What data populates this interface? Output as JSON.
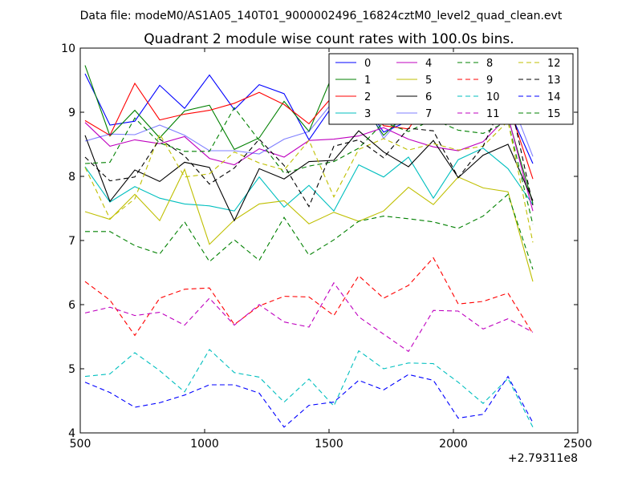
{
  "page": {
    "suptitle": "Data file: modeM0/AS1A05_140T01_9000002496_16824cztM0_level2_quad_clean.evt"
  },
  "chart_data": {
    "type": "line",
    "title": "Quadrant 2 module wise count rates with 100.0s bins.",
    "xlabel": "",
    "ylabel": "",
    "x_offset_label": "+2.79311e8",
    "xlim": [
      500,
      2500
    ],
    "ylim": [
      4,
      10
    ],
    "xticks": [
      500,
      1000,
      1500,
      2000,
      2500
    ],
    "yticks": [
      4,
      5,
      6,
      7,
      8,
      9,
      10
    ],
    "grid": false,
    "legend": {
      "position": "top-right",
      "ncol": 4
    },
    "x": [
      519.5,
      619.5,
      719.5,
      819.5,
      919.5,
      1019.5,
      1119.5,
      1219.5,
      1319.5,
      1419.5,
      1519.5,
      1619.5,
      1719.5,
      1819.5,
      1919.5,
      2019.5,
      2119.5,
      2219.5,
      2319.5
    ],
    "series": [
      {
        "name": "0",
        "color": "#0000ff",
        "dash": "solid",
        "values": [
          9.6,
          8.8,
          8.86,
          9.42,
          9.06,
          9.58,
          9.04,
          9.43,
          9.29,
          8.57,
          9.13,
          9.26,
          8.69,
          8.86,
          9.62,
          9.24,
          9.17,
          9.07,
          8.2
        ]
      },
      {
        "name": "1",
        "color": "#008000",
        "dash": "solid",
        "values": [
          9.73,
          8.63,
          9.03,
          8.6,
          9.02,
          9.11,
          8.42,
          8.6,
          9.17,
          8.7,
          9.63,
          9.21,
          8.64,
          9.01,
          9.22,
          9.06,
          9.07,
          8.92,
          7.58
        ]
      },
      {
        "name": "2",
        "color": "#ff0000",
        "dash": "solid",
        "values": [
          8.87,
          8.64,
          9.45,
          8.88,
          8.97,
          9.03,
          9.14,
          9.31,
          9.12,
          8.82,
          9.27,
          9.25,
          8.79,
          8.74,
          9.3,
          9.08,
          9.03,
          9.14,
          7.96
        ]
      },
      {
        "name": "3",
        "color": "#00bfbf",
        "dash": "solid",
        "values": [
          8.15,
          7.6,
          7.84,
          7.66,
          7.57,
          7.54,
          7.46,
          7.99,
          7.52,
          7.86,
          7.46,
          8.18,
          7.99,
          8.3,
          7.66,
          8.26,
          8.44,
          8.12,
          7.56
        ]
      },
      {
        "name": "4",
        "color": "#bf00bf",
        "dash": "solid",
        "values": [
          8.84,
          8.47,
          8.57,
          8.51,
          8.62,
          8.28,
          8.18,
          8.43,
          8.3,
          8.56,
          8.58,
          8.63,
          8.76,
          8.58,
          8.46,
          8.4,
          8.54,
          8.94,
          7.46
        ]
      },
      {
        "name": "5",
        "color": "#bfbf00",
        "dash": "solid",
        "values": [
          7.45,
          7.33,
          7.72,
          7.31,
          8.11,
          6.94,
          7.32,
          7.57,
          7.62,
          7.26,
          7.44,
          7.3,
          7.46,
          7.83,
          7.56,
          7.99,
          7.82,
          7.76,
          6.36
        ]
      },
      {
        "name": "6",
        "color": "#000000",
        "dash": "solid",
        "values": [
          8.64,
          7.61,
          8.1,
          7.92,
          8.22,
          8.14,
          7.31,
          8.12,
          7.96,
          8.23,
          8.25,
          8.71,
          8.38,
          8.15,
          8.56,
          7.98,
          8.33,
          8.5,
          7.62
        ]
      },
      {
        "name": "7",
        "color": "#0000ff",
        "dash": "solid",
        "alpha": 0.5,
        "values": [
          8.55,
          8.66,
          8.65,
          8.8,
          8.64,
          8.4,
          8.4,
          8.35,
          8.58,
          8.7,
          9.18,
          9.34,
          8.59,
          9.04,
          9.62,
          9.26,
          8.85,
          9.31,
          8.31
        ]
      },
      {
        "name": "8",
        "color": "#008000",
        "dash": "dashed",
        "values": [
          8.2,
          8.22,
          8.91,
          8.52,
          8.39,
          8.39,
          9.07,
          8.56,
          8.05,
          8.16,
          8.23,
          8.44,
          8.84,
          8.7,
          8.89,
          8.72,
          8.67,
          8.86,
          7.25
        ]
      },
      {
        "name": "9",
        "color": "#ff0000",
        "dash": "dashed",
        "values": [
          6.36,
          6.07,
          5.52,
          6.1,
          6.24,
          6.26,
          5.69,
          5.98,
          6.13,
          6.12,
          5.83,
          6.45,
          6.1,
          6.3,
          6.73,
          6.01,
          6.05,
          6.18,
          5.55
        ]
      },
      {
        "name": "10",
        "color": "#00bfbf",
        "dash": "dashed",
        "values": [
          4.88,
          4.92,
          5.25,
          4.97,
          4.64,
          5.3,
          4.94,
          4.87,
          4.48,
          4.84,
          4.42,
          5.28,
          5.0,
          5.09,
          5.08,
          4.79,
          4.46,
          4.85,
          4.09
        ]
      },
      {
        "name": "11",
        "color": "#bf00bf",
        "dash": "dashed",
        "values": [
          5.87,
          5.96,
          5.83,
          5.88,
          5.68,
          6.1,
          5.68,
          6.0,
          5.73,
          5.65,
          6.34,
          5.81,
          5.54,
          5.27,
          5.91,
          5.9,
          5.62,
          5.78,
          5.57
        ]
      },
      {
        "name": "12",
        "color": "#bfbf00",
        "dash": "dashed",
        "values": [
          8.14,
          7.34,
          7.65,
          8.66,
          7.99,
          8.04,
          8.38,
          8.21,
          8.1,
          8.56,
          7.68,
          8.42,
          8.59,
          8.41,
          8.51,
          8.41,
          8.47,
          8.86,
          6.97
        ]
      },
      {
        "name": "13",
        "color": "#000000",
        "dash": "dashed",
        "values": [
          8.3,
          7.93,
          7.99,
          8.58,
          8.32,
          7.88,
          8.13,
          8.58,
          8.17,
          7.53,
          8.47,
          8.57,
          8.29,
          8.75,
          8.71,
          7.98,
          8.47,
          9.33,
          7.55
        ]
      },
      {
        "name": "14",
        "color": "#0000ff",
        "dash": "dashed",
        "values": [
          4.79,
          4.63,
          4.4,
          4.47,
          4.59,
          4.75,
          4.75,
          4.62,
          4.09,
          4.43,
          4.48,
          4.82,
          4.67,
          4.91,
          4.82,
          4.23,
          4.29,
          4.88,
          4.16
        ]
      },
      {
        "name": "15",
        "color": "#008000",
        "dash": "dashed",
        "values": [
          7.14,
          7.14,
          6.92,
          6.79,
          7.29,
          6.67,
          7.01,
          6.69,
          7.36,
          6.77,
          7.01,
          7.3,
          7.38,
          7.34,
          7.29,
          7.19,
          7.38,
          7.72,
          6.55
        ]
      }
    ]
  }
}
